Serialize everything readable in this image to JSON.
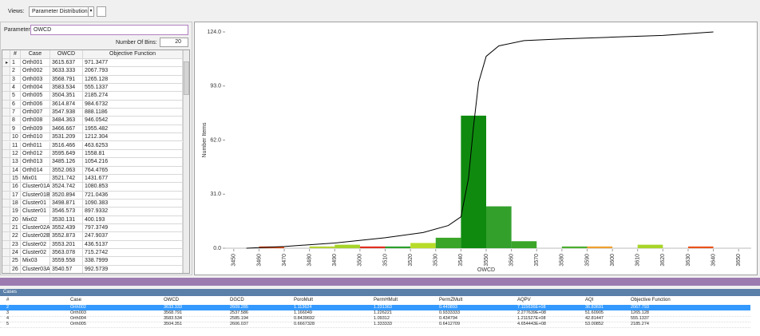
{
  "toolbar": {
    "views_label": "Views:",
    "view": "Parameter Distribution"
  },
  "parameter_panel": {
    "parameter_label": "Parameter:",
    "parameter": "OWCD",
    "bins_label": "Number Of Bins:",
    "bins": "20",
    "columns": [
      "#",
      "Case",
      "OWCD",
      "Objective Function"
    ],
    "rows": [
      [
        "1",
        "Orth001",
        "3615.637",
        "971.3477"
      ],
      [
        "2",
        "Orth002",
        "3633.333",
        "2067.793"
      ],
      [
        "3",
        "Orth003",
        "3568.791",
        "1265.128"
      ],
      [
        "4",
        "Orth004",
        "3583.534",
        "555.1337"
      ],
      [
        "5",
        "Orth005",
        "3504.351",
        "2185.274"
      ],
      [
        "6",
        "Orth006",
        "3614.874",
        "984.6732"
      ],
      [
        "7",
        "Orth007",
        "3547.938",
        "888.1186"
      ],
      [
        "8",
        "Orth008",
        "3484.363",
        "946.0542"
      ],
      [
        "9",
        "Orth009",
        "3466.667",
        "1955.482"
      ],
      [
        "10",
        "Orth010",
        "3531.209",
        "1212.304"
      ],
      [
        "11",
        "Orth011",
        "3516.466",
        "463.6253"
      ],
      [
        "12",
        "Orth012",
        "3595.649",
        "1558.81"
      ],
      [
        "13",
        "Orth013",
        "3485.126",
        "1054.216"
      ],
      [
        "14",
        "Orth014",
        "3552.063",
        "764.4765"
      ],
      [
        "15",
        "Mix01",
        "3521.742",
        "1431.677"
      ],
      [
        "16",
        "Cluster01A",
        "3524.742",
        "1080.853"
      ],
      [
        "17",
        "Cluster01B",
        "3520.894",
        "721.0436"
      ],
      [
        "18",
        "Cluster01",
        "3498.871",
        "1090.383"
      ],
      [
        "19",
        "Cluster01",
        "3546.573",
        "897.9332"
      ],
      [
        "20",
        "Mix02",
        "3530.131",
        "400.193"
      ],
      [
        "21",
        "Cluster02A",
        "3552.439",
        "797.3749"
      ],
      [
        "22",
        "Cluster02B",
        "3552.873",
        "247.9037"
      ],
      [
        "23",
        "Cluster02",
        "3553.201",
        "436.5137"
      ],
      [
        "24",
        "Cluster02",
        "3563.078",
        "715.2742"
      ],
      [
        "25",
        "Mix03",
        "3559.558",
        "338.7999"
      ],
      [
        "26",
        "Cluster03A",
        "3540.57",
        "992.5739"
      ]
    ]
  },
  "chart_data": {
    "type": "histogram",
    "xlabel": "OWCD",
    "ylabel": "Number Items",
    "bins": [
      3450,
      3460,
      3470,
      3480,
      3490,
      3500,
      3510,
      3520,
      3530,
      3540,
      3550,
      3560,
      3570,
      3580,
      3590,
      3600,
      3610,
      3620,
      3630,
      3640,
      3650
    ],
    "values": [
      0,
      1,
      0,
      1,
      2,
      1,
      1,
      3,
      6,
      76,
      24,
      4,
      0,
      1,
      1,
      0,
      2,
      0,
      1,
      0
    ],
    "colors": [
      "#cccccc",
      "#e8541c",
      "#cccccc",
      "#b5d334",
      "#a6d42a",
      "#e03020",
      "#2ca02c",
      "#b8dc2a",
      "#3aa528",
      "#0f8a0f",
      "#33a02c",
      "#3aa528",
      "#cccccc",
      "#4cae30",
      "#f0a030",
      "#cccccc",
      "#a8d42a",
      "#cccccc",
      "#e8541c",
      "#cccccc"
    ],
    "cumulative": {
      "color": "#000000",
      "x": [
        3455,
        3470,
        3490,
        3510,
        3525,
        3535,
        3540,
        3543,
        3545,
        3547,
        3550,
        3555,
        3565,
        3580,
        3600,
        3620,
        3640
      ],
      "values": [
        0,
        1,
        3,
        6,
        9,
        13,
        18,
        40,
        70,
        95,
        110,
        116,
        119,
        120,
        121,
        122,
        124
      ]
    },
    "xlim": [
      3445,
      3655
    ],
    "ylim": [
      0,
      124
    ],
    "xticks": [
      3450,
      3460,
      3470,
      3480,
      3490,
      3500,
      3510,
      3520,
      3530,
      3540,
      3550,
      3560,
      3570,
      3580,
      3590,
      3600,
      3610,
      3620,
      3630,
      3640,
      3650
    ],
    "yticks": [
      {
        "value": 0,
        "label": "0.0"
      },
      {
        "value": 31,
        "label": "31.0"
      },
      {
        "value": 62,
        "label": "62.0"
      },
      {
        "value": 93,
        "label": "93.0"
      },
      {
        "value": 124,
        "label": "124.0"
      }
    ]
  },
  "cases_panel": {
    "title": "Cases",
    "selected_row": 0,
    "columns": [
      "#",
      "Case",
      "OWCD",
      "DGCD",
      "PoroMult",
      "PermHMult",
      "PermZMult",
      "AQPV",
      "AQI",
      "Objective Function"
    ],
    "rows": [
      [
        "2",
        "Orth002",
        "3633.333",
        "2609.285",
        "1.113624",
        "1.231363",
        "0.440893",
        "7.115636E+08",
        "36.83691",
        "2067.793"
      ],
      [
        "3",
        "Orth003",
        "3568.791",
        "2537.586",
        "1.166049",
        "1.226221",
        "0.9333333",
        "2.277639E+08",
        "51.60905",
        "1265.128"
      ],
      [
        "4",
        "Orth004",
        "3583.534",
        "2585.194",
        "0.8439692",
        "1.09312",
        "0.434794",
        "1.211527E+08",
        "42.81447",
        "555.1337"
      ],
      [
        "5",
        "Orth005",
        "3504.351",
        "2606.037",
        "0.6667328",
        "1.333333",
        "0.6412709",
        "4.654443E+08",
        "53.00852",
        "2185.274"
      ]
    ]
  }
}
